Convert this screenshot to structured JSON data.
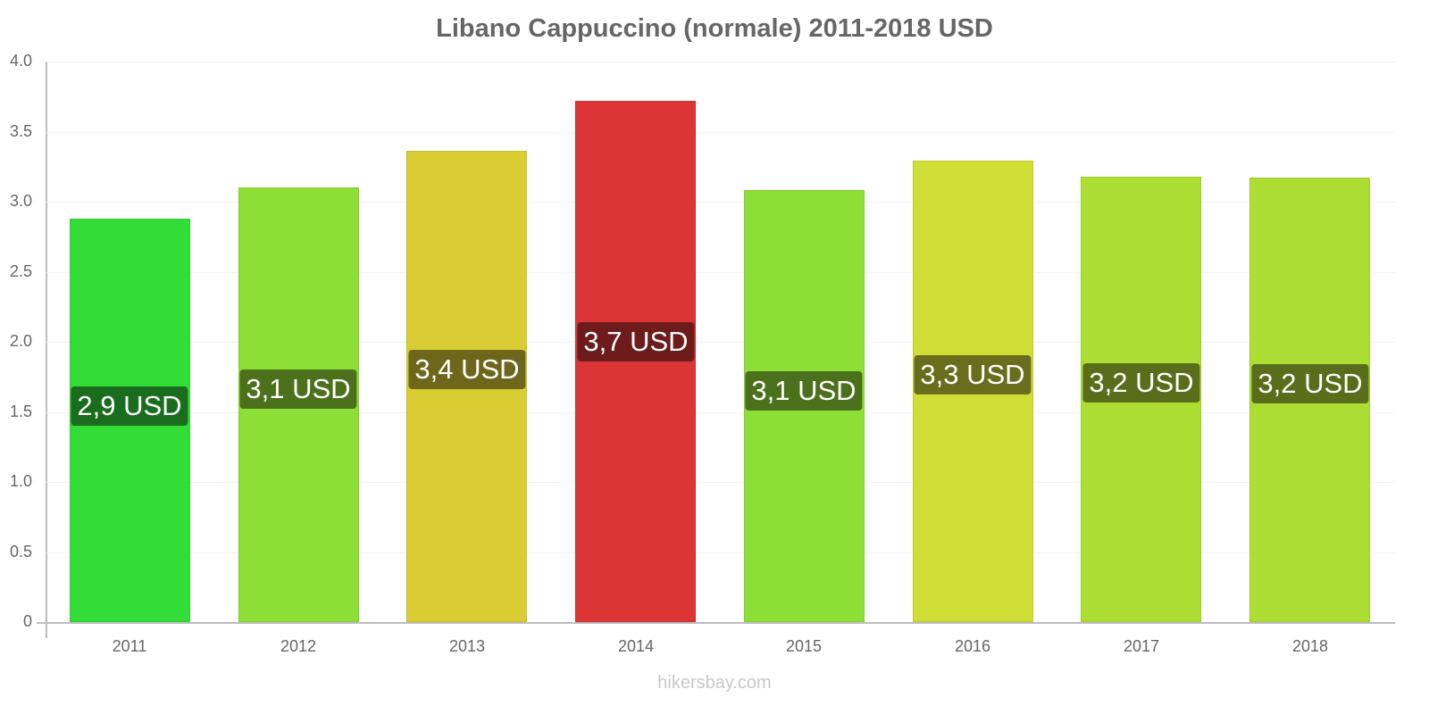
{
  "chart_data": {
    "type": "bar",
    "title": "Libano Cappuccino (normale) 2011-2018 USD",
    "xlabel": "",
    "ylabel": "",
    "ylim": [
      0,
      4.0
    ],
    "yticks": [
      "0",
      "0.5",
      "1.0",
      "1.5",
      "2.0",
      "2.5",
      "3.0",
      "3.5",
      "4.0"
    ],
    "grid": true,
    "legend": null,
    "categories": [
      "2011",
      "2012",
      "2013",
      "2014",
      "2015",
      "2016",
      "2017",
      "2018"
    ],
    "values": [
      2.88,
      3.1,
      3.36,
      3.72,
      3.08,
      3.29,
      3.18,
      3.17
    ],
    "data_labels": [
      "2,9 USD",
      "3,1 USD",
      "3,4 USD",
      "3,7 USD",
      "3,1 USD",
      "3,3 USD",
      "3,2 USD",
      "3,2 USD"
    ],
    "bar_colors": [
      "#33dd38",
      "#8ddf35",
      "#dacc33",
      "#db3535",
      "#8ddf35",
      "#cfdd35",
      "#acdd33",
      "#acdd33"
    ],
    "label_colors": [
      "#1b6d1e",
      "#4b711c",
      "#6e671b",
      "#6d1b1b",
      "#4b711c",
      "#686e1b",
      "#586e1b",
      "#586e1b"
    ]
  },
  "watermark": "hikersbay.com"
}
